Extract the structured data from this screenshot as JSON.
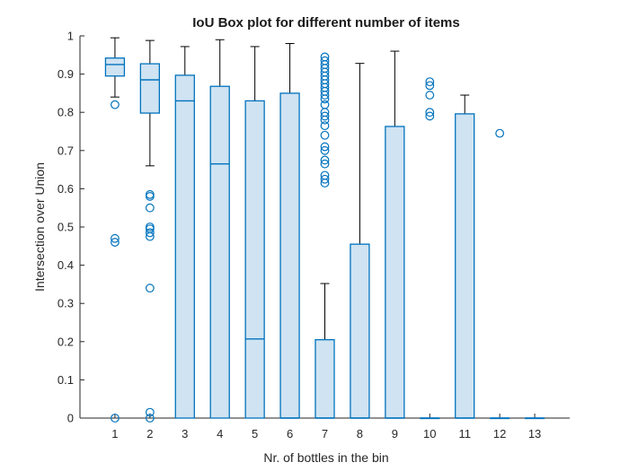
{
  "chart_data": {
    "type": "box",
    "title": "IoU Box plot for different number of items",
    "xlabel": "Nr. of bottles in the bin",
    "ylabel": "Intersection over Union",
    "ylim": [
      0,
      1
    ],
    "yticks": [
      0,
      0.1,
      0.2,
      0.3,
      0.4,
      0.5,
      0.6,
      0.7,
      0.8,
      0.9,
      1
    ],
    "ytick_labels": [
      "0",
      "0.1",
      "0.2",
      "0.3",
      "0.4",
      "0.5",
      "0.6",
      "0.7",
      "0.8",
      "0.9",
      "1"
    ],
    "categories": [
      "1",
      "2",
      "3",
      "4",
      "5",
      "6",
      "7",
      "8",
      "9",
      "10",
      "11",
      "12",
      "13"
    ],
    "colors": {
      "box_edge": "#0072BD",
      "box_fill": "#CFE3F2",
      "whisker": "#000000",
      "axis": "#262626"
    },
    "grid": false,
    "boxes": [
      {
        "category": "1",
        "lower_whisker": 0.84,
        "q1": 0.895,
        "median": 0.925,
        "q3": 0.942,
        "upper_whisker": 0.995,
        "outliers": [
          0.82,
          0.47,
          0.46,
          0.0
        ]
      },
      {
        "category": "2",
        "lower_whisker": 0.66,
        "q1": 0.798,
        "median": 0.885,
        "q3": 0.927,
        "upper_whisker": 0.988,
        "outliers": [
          0.585,
          0.58,
          0.55,
          0.5,
          0.495,
          0.485,
          0.475,
          0.34,
          0.015,
          0.0
        ]
      },
      {
        "category": "3",
        "lower_whisker": 0.0,
        "q1": 0.0,
        "median": 0.83,
        "q3": 0.897,
        "upper_whisker": 0.972,
        "outliers": []
      },
      {
        "category": "4",
        "lower_whisker": 0.0,
        "q1": 0.0,
        "median": 0.665,
        "q3": 0.868,
        "upper_whisker": 0.99,
        "outliers": []
      },
      {
        "category": "5",
        "lower_whisker": 0.0,
        "q1": 0.0,
        "median": 0.207,
        "q3": 0.83,
        "upper_whisker": 0.972,
        "outliers": []
      },
      {
        "category": "6",
        "lower_whisker": 0.0,
        "q1": 0.0,
        "median": 0.0,
        "q3": 0.85,
        "upper_whisker": 0.98,
        "outliers": []
      },
      {
        "category": "7",
        "lower_whisker": 0.0,
        "q1": 0.0,
        "median": 0.0,
        "q3": 0.205,
        "upper_whisker": 0.352,
        "outliers": [
          0.945,
          0.935,
          0.925,
          0.915,
          0.905,
          0.895,
          0.885,
          0.875,
          0.865,
          0.855,
          0.845,
          0.835,
          0.82,
          0.8,
          0.79,
          0.78,
          0.765,
          0.74,
          0.71,
          0.7,
          0.675,
          0.665,
          0.635,
          0.625,
          0.615
        ]
      },
      {
        "category": "8",
        "lower_whisker": 0.0,
        "q1": 0.0,
        "median": 0.0,
        "q3": 0.455,
        "upper_whisker": 0.928,
        "outliers": []
      },
      {
        "category": "9",
        "lower_whisker": 0.0,
        "q1": 0.0,
        "median": 0.0,
        "q3": 0.763,
        "upper_whisker": 0.96,
        "outliers": []
      },
      {
        "category": "10",
        "lower_whisker": 0.0,
        "q1": 0.0,
        "median": 0.0,
        "q3": 0.0,
        "upper_whisker": 0.0,
        "outliers": [
          0.88,
          0.87,
          0.845,
          0.8,
          0.79
        ]
      },
      {
        "category": "11",
        "lower_whisker": 0.0,
        "q1": 0.0,
        "median": 0.0,
        "q3": 0.796,
        "upper_whisker": 0.845,
        "outliers": []
      },
      {
        "category": "12",
        "lower_whisker": 0.0,
        "q1": 0.0,
        "median": 0.0,
        "q3": 0.0,
        "upper_whisker": 0.0,
        "outliers": [
          0.745
        ]
      },
      {
        "category": "13",
        "lower_whisker": 0.0,
        "q1": 0.0,
        "median": 0.0,
        "q3": 0.0,
        "upper_whisker": 0.0,
        "outliers": []
      }
    ]
  }
}
